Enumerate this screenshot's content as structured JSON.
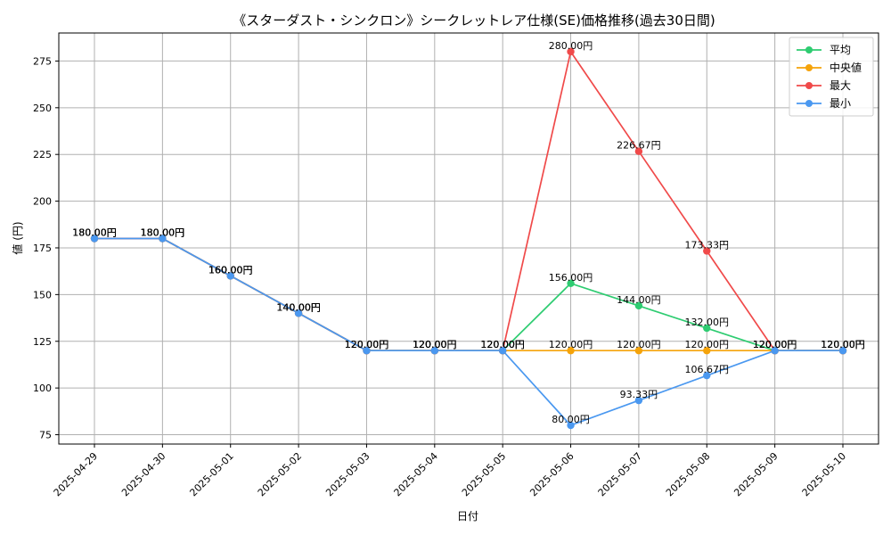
{
  "chart_data": {
    "type": "line",
    "title": "《スターダスト・シンクロン》シークレットレア仕様(SE)価格推移(過去30日間)",
    "xlabel": "日付",
    "ylabel": "値 (円)",
    "categories": [
      "2025-04-29",
      "2025-04-30",
      "2025-05-01",
      "2025-05-02",
      "2025-05-03",
      "2025-05-04",
      "2025-05-05",
      "2025-05-06",
      "2025-05-07",
      "2025-05-08",
      "2025-05-09",
      "2025-05-10"
    ],
    "ylim": [
      70,
      290
    ],
    "yticks": [
      75,
      100,
      125,
      150,
      175,
      200,
      225,
      250,
      275
    ],
    "grid": true,
    "legend_position": "top-right",
    "series": [
      {
        "name": "平均",
        "color": "#2ecc71",
        "values": [
          180,
          180,
          160,
          140,
          120,
          120,
          120,
          156,
          144,
          132,
          120,
          120
        ],
        "labels": [
          "180.00円",
          "180.00円",
          "160.00円",
          "140.00円",
          "120.00円",
          "120.00円",
          "120.00円",
          "156.00円",
          "144.00円",
          "132.00円",
          "120.00円",
          "120.00円"
        ]
      },
      {
        "name": "中央値",
        "color": "#f5a30a",
        "values": [
          180,
          180,
          160,
          140,
          120,
          120,
          120,
          120,
          120,
          120,
          120,
          120
        ],
        "labels": [
          "180.00円",
          "180.00円",
          "160.00円",
          "140.00円",
          "120.00円",
          "120.00円",
          "120.00円",
          "120.00円",
          "120.00円",
          "120.00円",
          "120.00円",
          "120.00円"
        ]
      },
      {
        "name": "最大",
        "color": "#f04a4a",
        "values": [
          180,
          180,
          160,
          140,
          120,
          120,
          120,
          280,
          226.67,
          173.33,
          120,
          120
        ],
        "labels": [
          "180.00円",
          "180.00円",
          "160.00円",
          "140.00円",
          "120.00円",
          "120.00円",
          "120.00円",
          "280.00円",
          "226.67円",
          "173.33円",
          "120.00円",
          "120.00円"
        ]
      },
      {
        "name": "最小",
        "color": "#4a98f0",
        "values": [
          180,
          180,
          160,
          140,
          120,
          120,
          120,
          80,
          93.33,
          106.67,
          120,
          120
        ],
        "labels": [
          "180.00円",
          "180.00円",
          "160.00円",
          "140.00円",
          "120.00円",
          "120.00円",
          "120.00円",
          "80.00円",
          "93.33円",
          "106.67円",
          "120.00円",
          "120.00円"
        ]
      }
    ]
  }
}
